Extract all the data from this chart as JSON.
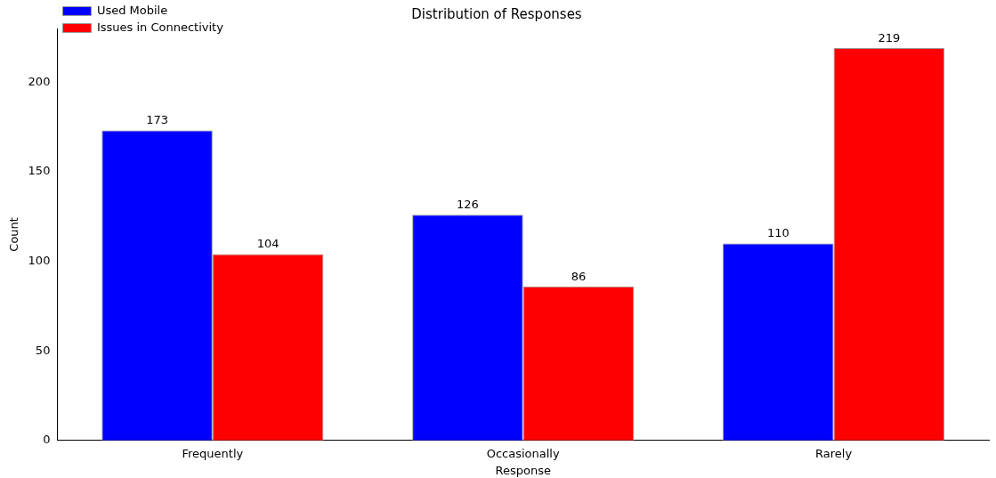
{
  "chart_data": {
    "type": "bar",
    "title": "Distribution of Responses",
    "xlabel": "Response",
    "ylabel": "Count",
    "categories": [
      "Frequently",
      "Occasionally",
      "Rarely"
    ],
    "series": [
      {
        "name": "Used Mobile",
        "color": "#0000ff",
        "values": [
          173,
          126,
          110
        ]
      },
      {
        "name": "Issues in Connectivity",
        "color": "#ff0000",
        "values": [
          104,
          86,
          219
        ]
      }
    ],
    "ylim": [
      0,
      229.95
    ],
    "yticks": [
      0,
      50,
      100,
      150,
      200
    ],
    "grid": false,
    "legend": "top left",
    "data_labels": true
  }
}
